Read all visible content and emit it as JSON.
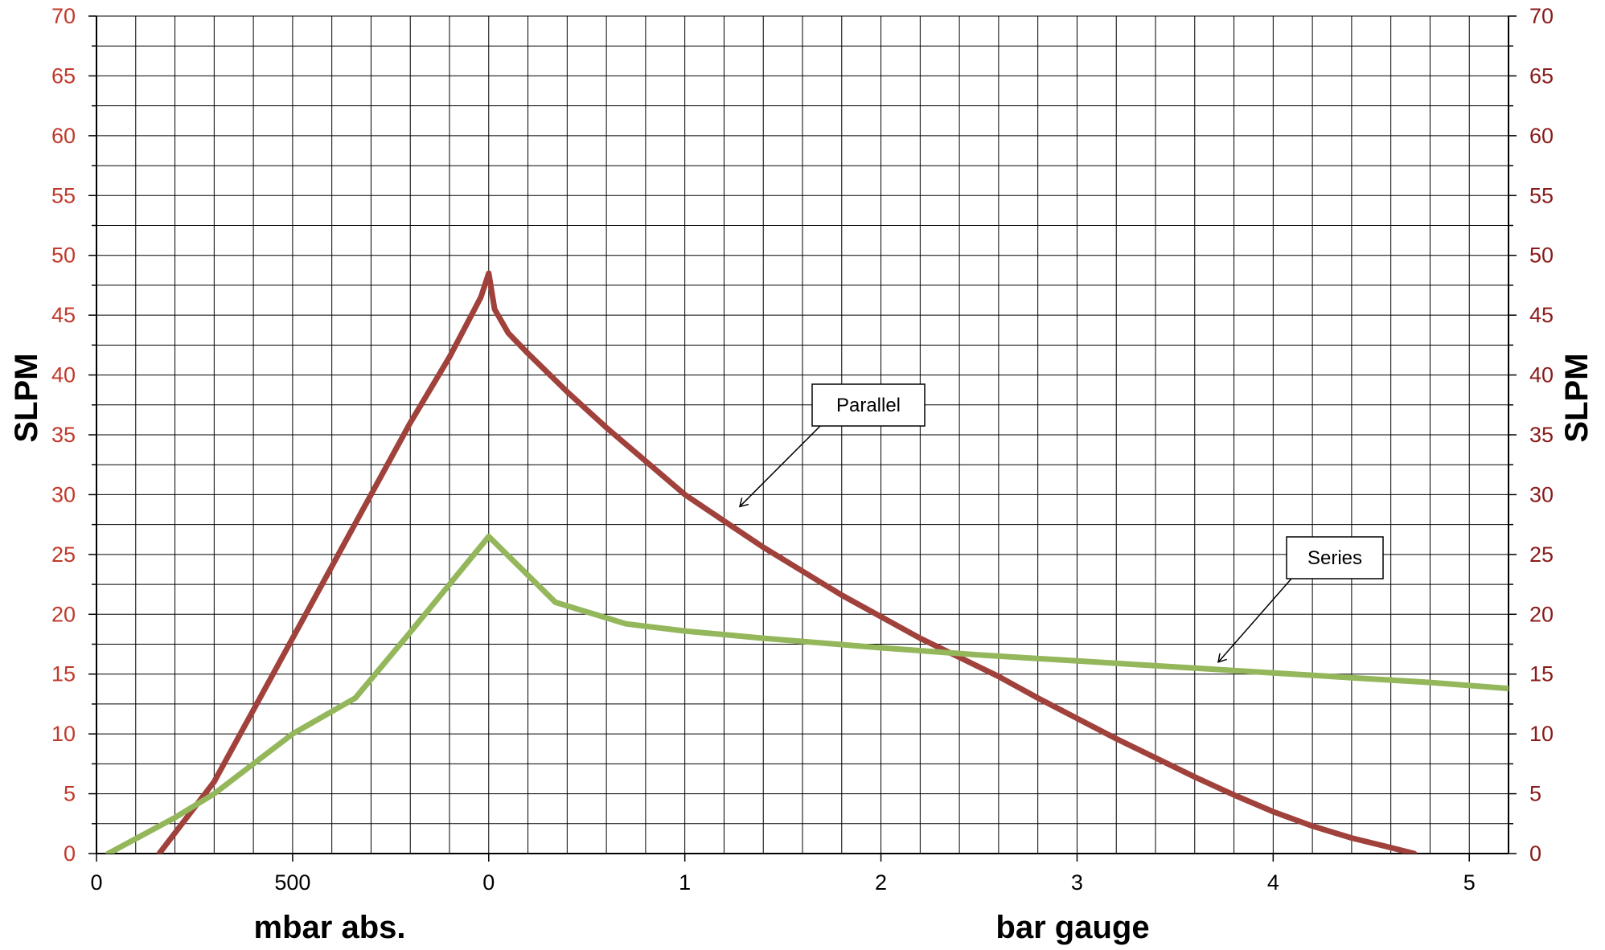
{
  "chart_data": {
    "type": "line",
    "ylabel_left": "SLPM",
    "ylabel_right": "SLPM",
    "xlabel_left": "mbar abs.",
    "xlabel_right": "bar gauge",
    "ylim": [
      0,
      70
    ],
    "y_ticks": [
      0,
      5,
      10,
      15,
      20,
      25,
      30,
      35,
      40,
      45,
      50,
      55,
      60,
      65,
      70
    ],
    "x_axis_note": "x position is measured in chart units where 0 = 0 mbar abs., 10 = 1000 mbar abs. = 0 bar gauge, and each 1 bar gauge = 10 units",
    "xlim": [
      0,
      36
    ],
    "x_ticks": [
      {
        "x": 0,
        "label": "0"
      },
      {
        "x": 5,
        "label": "500"
      },
      {
        "x": 10,
        "label": "0"
      },
      {
        "x": 15,
        "label": "1"
      },
      {
        "x": 20,
        "label": "2"
      },
      {
        "x": 25,
        "label": "3"
      },
      {
        "x": 30,
        "label": "4"
      },
      {
        "x": 35,
        "label": "5"
      }
    ],
    "grid": true,
    "series": [
      {
        "name": "Parallel",
        "color": "#a0413b",
        "points": [
          [
            1.6,
            0
          ],
          [
            3.0,
            6
          ],
          [
            4.0,
            12
          ],
          [
            5.0,
            18
          ],
          [
            6.0,
            24
          ],
          [
            7.0,
            30
          ],
          [
            8.0,
            36
          ],
          [
            9.0,
            41.5
          ],
          [
            9.8,
            46.5
          ],
          [
            10.0,
            48.5
          ],
          [
            10.15,
            45.5
          ],
          [
            10.5,
            43.5
          ],
          [
            11.0,
            41.8
          ],
          [
            12.0,
            38.6
          ],
          [
            13.0,
            35.6
          ],
          [
            14.0,
            32.8
          ],
          [
            15.0,
            30.0
          ],
          [
            16.0,
            27.8
          ],
          [
            17.0,
            25.6
          ],
          [
            18.0,
            23.6
          ],
          [
            19.0,
            21.6
          ],
          [
            20.0,
            19.8
          ],
          [
            21.0,
            18.0
          ],
          [
            22.0,
            16.4
          ],
          [
            23.0,
            14.8
          ],
          [
            24.0,
            13.0
          ],
          [
            25.0,
            11.3
          ],
          [
            26.0,
            9.6
          ],
          [
            27.0,
            8.0
          ],
          [
            28.0,
            6.4
          ],
          [
            29.0,
            4.9
          ],
          [
            30.0,
            3.5
          ],
          [
            31.0,
            2.3
          ],
          [
            32.0,
            1.3
          ],
          [
            33.0,
            0.5
          ],
          [
            33.6,
            0
          ]
        ]
      },
      {
        "name": "Series",
        "color": "#93b75a",
        "points": [
          [
            0.3,
            0
          ],
          [
            2.0,
            3.0
          ],
          [
            3.0,
            5.0
          ],
          [
            5.0,
            10.0
          ],
          [
            6.6,
            13.0
          ],
          [
            8.0,
            18.5
          ],
          [
            10.0,
            26.5
          ],
          [
            11.7,
            21.0
          ],
          [
            13.5,
            19.2
          ],
          [
            15.0,
            18.6
          ],
          [
            17.0,
            18.0
          ],
          [
            20.0,
            17.2
          ],
          [
            22.5,
            16.6
          ],
          [
            25.0,
            16.1
          ],
          [
            28.0,
            15.5
          ],
          [
            30.0,
            15.1
          ],
          [
            32.0,
            14.7
          ],
          [
            34.0,
            14.3
          ],
          [
            36.0,
            13.8
          ]
        ]
      }
    ],
    "annotations": [
      {
        "label": "Parallel",
        "series": "Parallel",
        "target": [
          16.4,
          29.0
        ]
      },
      {
        "label": "Series",
        "series": "Series",
        "target": [
          28.6,
          16.0
        ]
      }
    ]
  }
}
